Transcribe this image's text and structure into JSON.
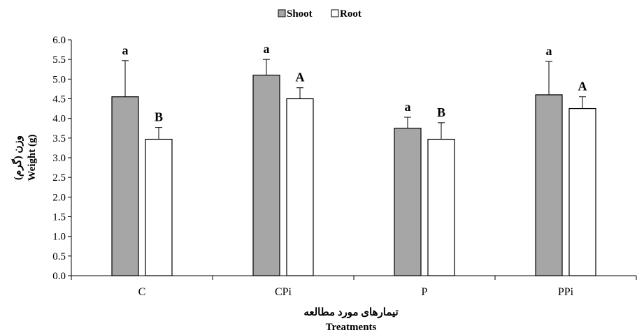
{
  "chart_data": {
    "type": "bar",
    "categories": [
      "C",
      "CPi",
      "P",
      "PPi"
    ],
    "series": [
      {
        "name": "Shoot",
        "color": "#a6a6a6",
        "values": [
          4.55,
          5.1,
          3.75,
          4.6
        ],
        "errors": [
          0.92,
          0.4,
          0.28,
          0.85
        ],
        "labels": [
          "a",
          "a",
          "a",
          "a"
        ]
      },
      {
        "name": "Root",
        "color": "#ffffff",
        "values": [
          3.47,
          4.5,
          3.47,
          4.25
        ],
        "errors": [
          0.3,
          0.28,
          0.42,
          0.3
        ],
        "labels": [
          "B",
          "A",
          "B",
          "A"
        ]
      }
    ],
    "ylim": [
      0,
      6
    ],
    "yticks": [
      "0.0",
      "0.5",
      "1.0",
      "1.5",
      "2.0",
      "2.5",
      "3.0",
      "3.5",
      "4.0",
      "4.5",
      "5.0",
      "5.5",
      "6.0"
    ],
    "ylabel_fa": "وزن (گرم)",
    "ylabel_en": "Weight (g)",
    "xlabel_fa": "تیمارهای مورد مطالعه",
    "xlabel_en": "Treatments",
    "legend_position": "top-center",
    "grid": false
  }
}
